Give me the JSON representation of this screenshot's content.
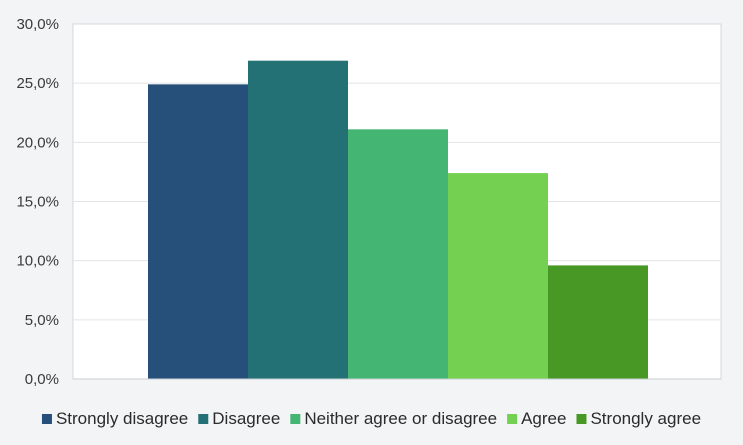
{
  "chart_data": {
    "type": "bar",
    "title": "",
    "xlabel": "",
    "ylabel": "",
    "ylim": [
      0,
      30
    ],
    "yticks": [
      "0,0%",
      "5,0%",
      "10,0%",
      "15,0%",
      "20,0%",
      "25,0%",
      "30,0%"
    ],
    "ytick_values": [
      0,
      5,
      10,
      15,
      20,
      25,
      30
    ],
    "grid": true,
    "legend_position": "bottom",
    "series": [
      {
        "name": "Strongly disagree",
        "value": 24.9,
        "color": "#26507a"
      },
      {
        "name": "Disagree",
        "value": 26.9,
        "color": "#237075"
      },
      {
        "name": "Neither agree or disagree",
        "value": 21.1,
        "color": "#45b574"
      },
      {
        "name": "Agree",
        "value": 17.4,
        "color": "#74d050"
      },
      {
        "name": "Strongly agree",
        "value": 9.6,
        "color": "#489825"
      }
    ]
  }
}
